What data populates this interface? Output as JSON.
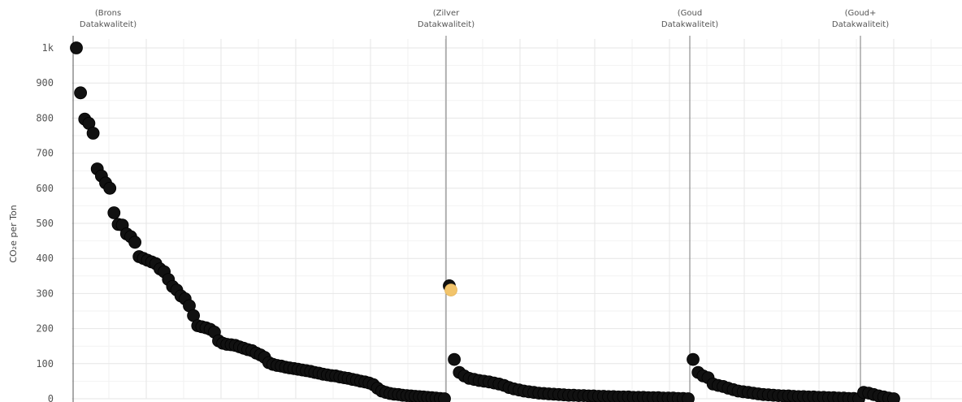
{
  "chart_data": {
    "type": "scatter",
    "title": "",
    "xlabel": "",
    "ylabel": "CO₂e per Ton",
    "ylim": [
      0,
      1000
    ],
    "yticks": [
      {
        "value": 0,
        "label": "0"
      },
      {
        "value": 100,
        "label": "100"
      },
      {
        "value": 200,
        "label": "200"
      },
      {
        "value": 300,
        "label": "300"
      },
      {
        "value": 400,
        "label": "400"
      },
      {
        "value": 500,
        "label": "500"
      },
      {
        "value": 600,
        "label": "600"
      },
      {
        "value": 700,
        "label": "700"
      },
      {
        "value": 800,
        "label": "800"
      },
      {
        "value": 900,
        "label": "900"
      },
      {
        "value": 1000,
        "label": "1k"
      }
    ],
    "grid": true,
    "legend": "none",
    "colors": {
      "point": "#111111",
      "highlight": "#f2c46b",
      "divider": "#7a7a7a",
      "grid": "#e6e6e6"
    },
    "sections": [
      {
        "line1": "(Brons",
        "line2": "Datakwaliteit)"
      },
      {
        "line1": "(Zilver",
        "line2": "Datakwaliteit)"
      },
      {
        "line1": "(Goud",
        "line2": "Datakwaliteit)"
      },
      {
        "line1": "(Goud+",
        "line2": "Datakwaliteit)"
      }
    ],
    "series": [
      {
        "section": 0,
        "values": [
          1000,
          872,
          797,
          785,
          757,
          655,
          635,
          615,
          600,
          530,
          497,
          495,
          470,
          462,
          446,
          405,
          400,
          395,
          390,
          385,
          370,
          362,
          340,
          320,
          310,
          293,
          285,
          265,
          237,
          208,
          205,
          202,
          198,
          190,
          165,
          158,
          155,
          154,
          152,
          148,
          144,
          140,
          137,
          130,
          125,
          118,
          103,
          98,
          95,
          93,
          90,
          88,
          86,
          84,
          82,
          80,
          78,
          75,
          73,
          70,
          68,
          66,
          65,
          62,
          60,
          58,
          55,
          53,
          50,
          48,
          45,
          40,
          30,
          22,
          18,
          15,
          13,
          12,
          10,
          9,
          8,
          7,
          6,
          5,
          4,
          3,
          2,
          1,
          0
        ]
      },
      {
        "section": 1,
        "values": [
          322,
          112,
          75,
          65,
          58,
          55,
          52,
          50,
          48,
          45,
          42,
          38,
          32,
          28,
          25,
          22,
          20,
          18,
          16,
          15,
          14,
          13,
          12,
          11,
          10,
          10,
          9,
          9,
          8,
          8,
          7,
          7,
          6,
          6,
          5,
          5,
          5,
          4,
          4,
          4,
          3,
          3,
          3,
          2,
          2,
          2,
          1,
          1,
          0
        ]
      },
      {
        "section": 2,
        "values": [
          112,
          75,
          65,
          60,
          42,
          38,
          35,
          30,
          26,
          22,
          20,
          18,
          16,
          14,
          12,
          11,
          10,
          9,
          8,
          8,
          7,
          6,
          6,
          5,
          5,
          4,
          4,
          3,
          3,
          2,
          2,
          1,
          1,
          0
        ]
      },
      {
        "section": 3,
        "values": [
          18,
          16,
          12,
          8,
          5,
          2,
          0
        ]
      }
    ],
    "highlight": {
      "section": 1,
      "value": 310
    }
  }
}
